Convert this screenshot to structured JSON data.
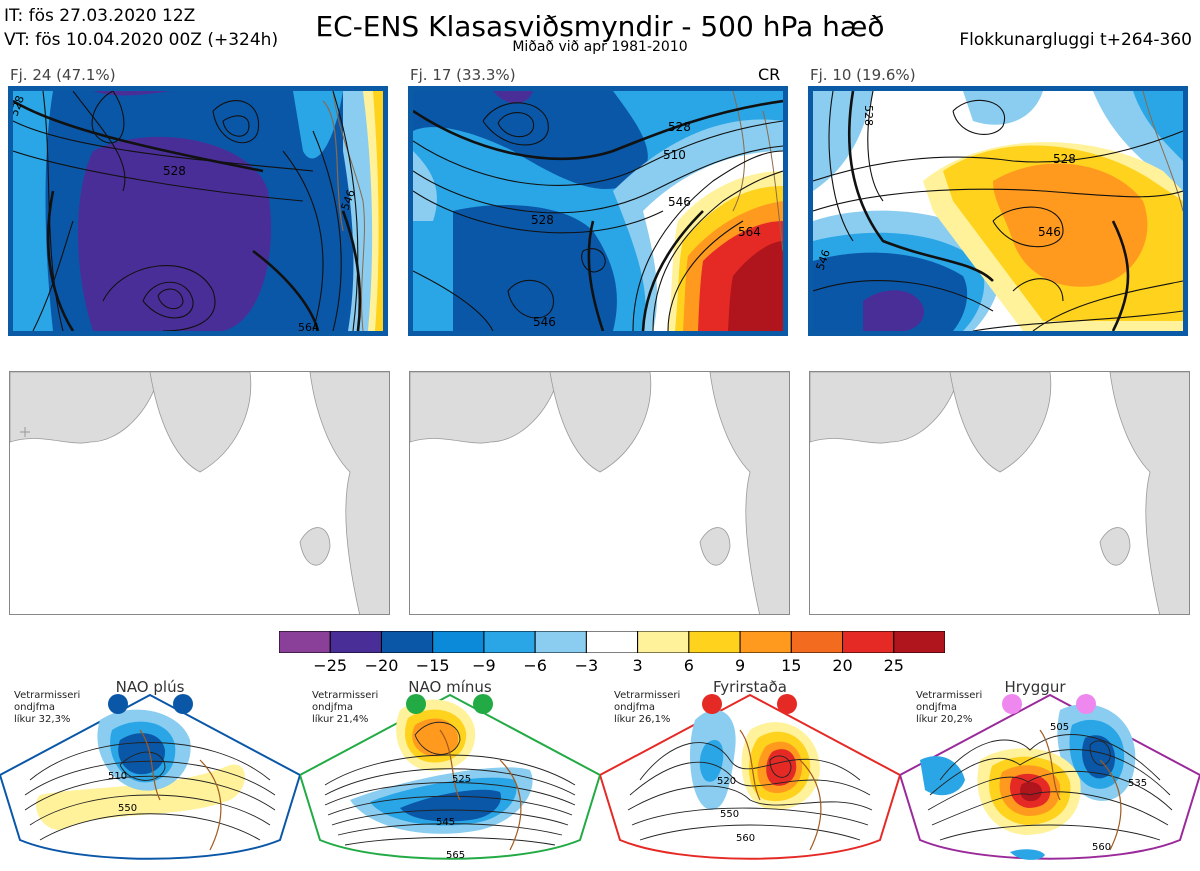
{
  "header": {
    "it": "IT: fös 27.03.2020 12Z",
    "vt": "VT: fös 10.04.2020 00Z  (+324h)",
    "title": "EC-ENS Klasasviðsmyndir - 500 hPa hæð",
    "subtitle": "Miðað við apr 1981-2010",
    "window": "Flokkunargluggi t+264-360"
  },
  "panels": [
    {
      "label": "Fj. 24 (47.1%)",
      "contours": [
        "528",
        "546",
        "564",
        "528"
      ]
    },
    {
      "label": "Fj. 17 (33.3%)",
      "marker": "CR",
      "contours": [
        "510",
        "528",
        "546",
        "564",
        "528",
        "546"
      ]
    },
    {
      "label": "Fj. 10 (19.6%)",
      "contours": [
        "528",
        "546",
        "546",
        "528"
      ]
    }
  ],
  "colorbar": {
    "colors": [
      "#8a3f98",
      "#4a2e98",
      "#0a57a8",
      "#0a8ad8",
      "#2aa6e6",
      "#8acdf0",
      "#ffffff",
      "#fff29a",
      "#ffd21e",
      "#ff9a1e",
      "#f26b1e",
      "#e52a26",
      "#b0141c"
    ],
    "ticks": [
      "−25",
      "−20",
      "−15",
      "−9",
      "−6",
      "−3",
      "3",
      "6",
      "9",
      "15",
      "20",
      "25"
    ]
  },
  "regimes": [
    {
      "name": "NAO plús",
      "info": [
        "Vetrarmisseri",
        "ondjfma",
        "líkur 32,3%"
      ],
      "color": "#0a57a8",
      "labels": [
        "510",
        "550"
      ]
    },
    {
      "name": "NAO mínus",
      "info": [
        "Vetrarmisseri",
        "ondjfma",
        "líkur 21,4%"
      ],
      "color": "#22aa44",
      "labels": [
        "525",
        "545",
        "565"
      ]
    },
    {
      "name": "Fyrirstaða",
      "info": [
        "Vetrarmisseri",
        "ondjfma",
        "líkur 26,1%"
      ],
      "color": "#e52a26",
      "labels": [
        "520",
        "550",
        "560"
      ]
    },
    {
      "name": "Hryggur",
      "info": [
        "Vetrarmisseri",
        "ondjfma",
        "líkur 20,2%"
      ],
      "color": "#9a2a9a",
      "labels": [
        "505",
        "535",
        "560"
      ]
    }
  ]
}
